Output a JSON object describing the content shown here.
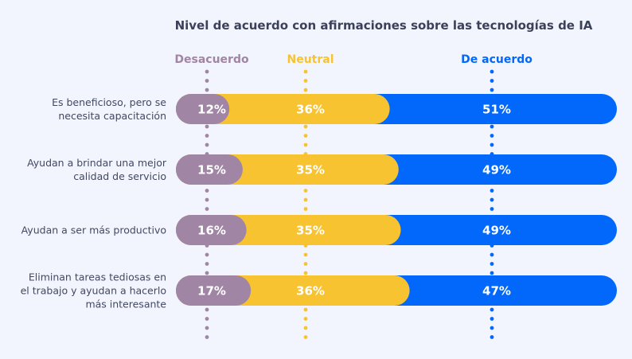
{
  "chart_data": {
    "type": "bar",
    "orientation": "horizontal",
    "stacked": true,
    "title": "Nivel de acuerdo con afirmaciones sobre las tecnologías de IA",
    "xlabel": "",
    "ylabel": "",
    "categories": [
      [
        "Es beneficioso, pero se",
        "necesita capacitación"
      ],
      [
        "Ayudan a brindar una mejor",
        "calidad de servicio"
      ],
      [
        "Ayudan a ser más productivo"
      ],
      [
        "Eliminan tareas tediosas en",
        "el trabajo y ayudan a hacerlo",
        "más interesante"
      ]
    ],
    "series": [
      {
        "name": "Desacuerdo",
        "color": "#a185a4",
        "values": [
          12,
          15,
          16,
          17
        ],
        "labels": [
          "12%",
          "15%",
          "16%",
          "17%"
        ]
      },
      {
        "name": "Neutral",
        "color": "#f7c331",
        "values": [
          36,
          35,
          35,
          36
        ],
        "labels": [
          "36%",
          "35%",
          "35%",
          "36%"
        ]
      },
      {
        "name": "De acuerdo",
        "color": "#0268fb",
        "values": [
          51,
          49,
          49,
          47
        ],
        "labels": [
          "51%",
          "49%",
          "49%",
          "47%"
        ]
      }
    ],
    "legend_position": "top",
    "grid": false
  }
}
